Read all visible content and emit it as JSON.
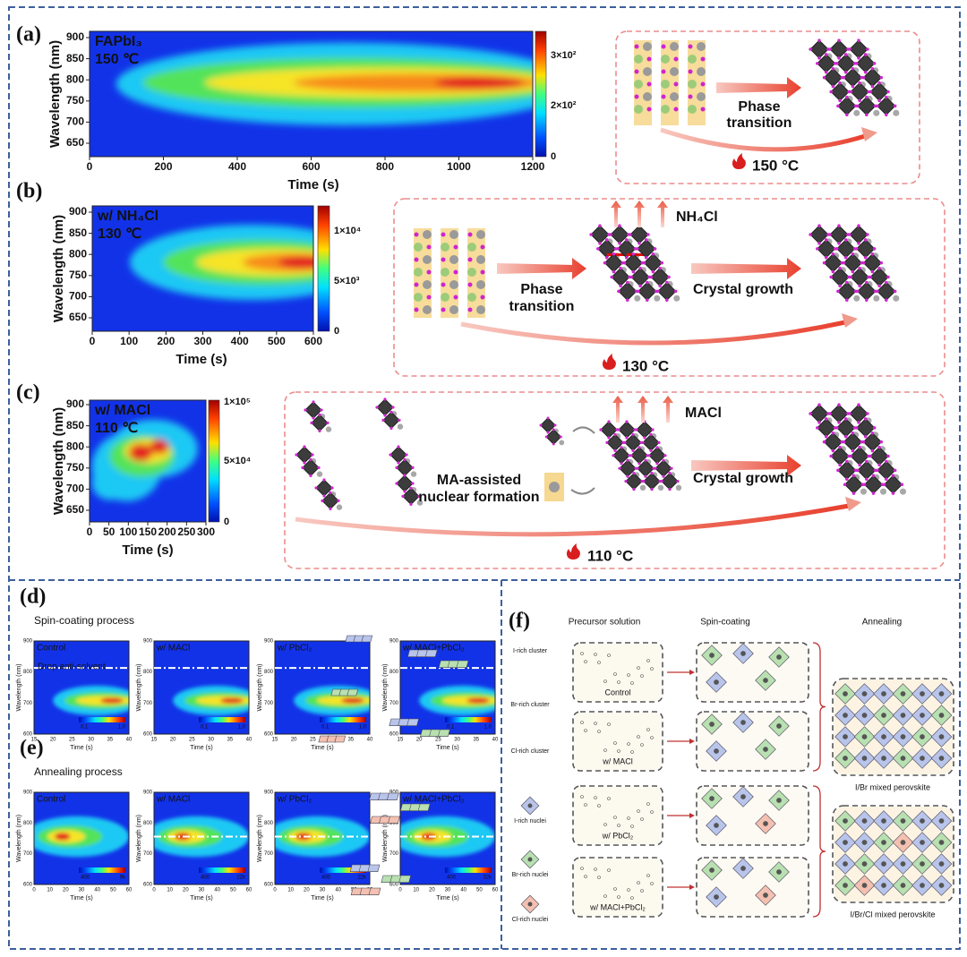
{
  "panels": [
    {
      "label": "(a)",
      "plot": {
        "annotation": [
          "FAPbI₃",
          "150 ℃"
        ],
        "xlabel": "Time (s)",
        "ylabel": "Wavelength (nm)",
        "xticks": [
          0,
          200,
          400,
          600,
          800,
          1000,
          1200
        ],
        "yticks": [
          650,
          700,
          750,
          800,
          850,
          900
        ],
        "colorbar": [
          "3×10²",
          "2×10²",
          "0"
        ]
      },
      "scheme": {
        "arrow_labels": [
          [
            "Phase",
            "transition"
          ]
        ],
        "temperature": "150 °C"
      }
    },
    {
      "label": "(b)",
      "plot": {
        "annotation": [
          "w/ NH₄Cl",
          "130 ℃"
        ],
        "xlabel": "Time (s)",
        "ylabel": "Wavelength (nm)",
        "xticks": [
          0,
          100,
          200,
          300,
          400,
          500,
          600
        ],
        "yticks": [
          650,
          700,
          750,
          800,
          850,
          900
        ],
        "colorbar": [
          "1×10⁴",
          "5×10³",
          "0"
        ]
      },
      "scheme": {
        "byproduct": "NH₄Cl",
        "arrow_labels": [
          [
            "Phase",
            "transition"
          ],
          [
            "Crystal growth"
          ]
        ],
        "temperature": "130 °C"
      }
    },
    {
      "label": "(c)",
      "plot": {
        "annotation": [
          "w/ MACl",
          "110 ℃"
        ],
        "xlabel": "Time (s)",
        "ylabel": "Wavelength (nm)",
        "xticks": [
          0,
          50,
          100,
          150,
          200,
          250,
          300
        ],
        "yticks": [
          650,
          700,
          750,
          800,
          850,
          900
        ],
        "colorbar": [
          "1×10⁵",
          "5×10⁴",
          "0"
        ]
      },
      "scheme": {
        "byproduct": "MACl",
        "arrow_labels": [
          [
            "MA-assisted",
            "nuclear formation"
          ],
          [
            "Crystal growth"
          ]
        ],
        "temperature": "110 °C"
      }
    }
  ],
  "d": {
    "label": "(d)",
    "title": "Spin-coating process",
    "annotation": "Drop anti-solvent",
    "xlabel": "Time (s)",
    "ylabel": "Wavelength (nm)",
    "xticks": [
      15,
      20,
      25,
      30,
      35,
      40
    ],
    "yticks": [
      600,
      700,
      800,
      900
    ],
    "plots": [
      {
        "name": "Control",
        "colorbar": [
          "0.1",
          "1.0"
        ]
      },
      {
        "name": "w/ MACl",
        "colorbar": [
          "0.1",
          "1.0"
        ]
      },
      {
        "name": "w/ PbCl₂",
        "colorbar": [
          "0.1",
          "1.0"
        ]
      },
      {
        "name": "w/ MACl+PbCl₂",
        "colorbar": [
          "0.1",
          "1.0"
        ]
      }
    ]
  },
  "e": {
    "label": "(e)",
    "title": "Annealing process",
    "xlabel": "Time (s)",
    "ylabel": "Wavelength (nm)",
    "xticks": [
      0,
      10,
      20,
      30,
      40,
      50,
      60
    ],
    "yticks": [
      600,
      700,
      800,
      900
    ],
    "plots": [
      {
        "name": "Control",
        "colorbar": [
          "400",
          "9k"
        ]
      },
      {
        "name": "w/ MACl",
        "colorbar": [
          "400",
          "22k"
        ]
      },
      {
        "name": "w/ PbCl₂",
        "colorbar": [
          "400",
          "22k"
        ]
      },
      {
        "name": "w/ MACl+PbCl₂",
        "colorbar": [
          "400",
          "32k"
        ]
      }
    ]
  },
  "f": {
    "label": "(f)",
    "columns": [
      "Precursor solution",
      "Spin-coating",
      "Annealing"
    ],
    "legend": [
      "I-rich cluster",
      "Br-rich cluster",
      "Cl-rich cluster",
      "I-rich nuclei",
      "Br-rich nuclei",
      "Cl-rich nuclei"
    ],
    "samples": [
      "Control",
      "w/ MACl",
      "w/ PbCl₂",
      "w/ MACl+PbCl₂"
    ],
    "products": [
      "I/Br mixed perovskite",
      "I/Br/Cl mixed perovskite"
    ]
  }
}
